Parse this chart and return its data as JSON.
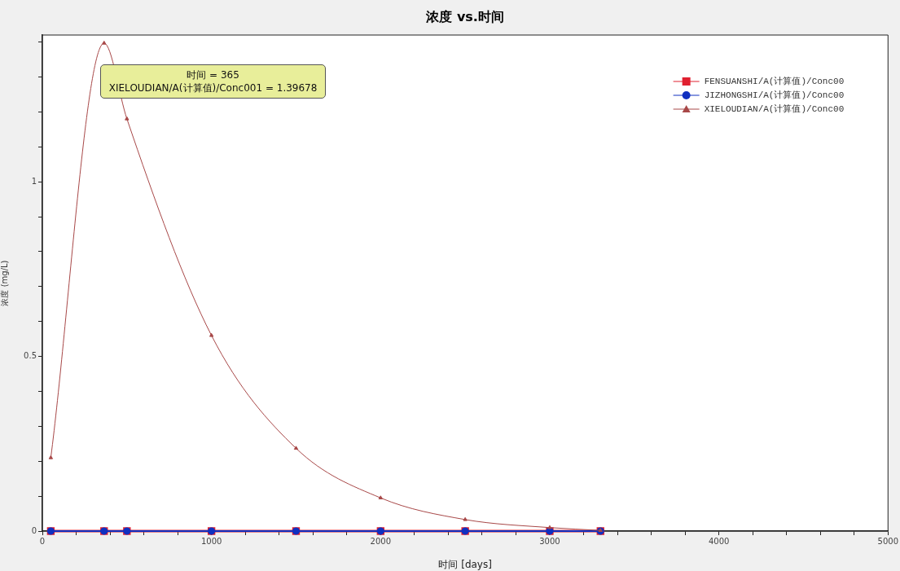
{
  "chart_data": {
    "type": "line",
    "title": "浓度 vs.时间",
    "xlabel": "时间 [days]",
    "ylabel": "浓度 (mg/L)",
    "x": [
      50,
      365,
      500,
      1000,
      1500,
      2000,
      2500,
      3000,
      3300
    ],
    "series": [
      {
        "name": "FENSUANSHI/A(计算值)/Conc00",
        "color": "#e02030",
        "marker": "square",
        "values": [
          0,
          0,
          0,
          0,
          0,
          0,
          0,
          0,
          0
        ]
      },
      {
        "name": "JIZHONGSHI/A(计算值)/Conc00",
        "color": "#1030c0",
        "marker": "circle",
        "values": [
          0,
          0,
          0,
          0,
          0,
          0,
          0,
          0,
          0
        ]
      },
      {
        "name": "XIELOUDIAN/A(计算值)/Conc00",
        "color": "#a84848",
        "marker": "triangle",
        "values": [
          0.21,
          1.39678,
          1.18,
          0.56,
          0.237,
          0.095,
          0.033,
          0.01,
          0.002
        ]
      }
    ],
    "xlim": [
      0,
      5000
    ],
    "xticks": [
      0,
      {
        "value": 200,
        "label": null
      },
      {
        "value": 400,
        "label": null
      },
      {
        "value": 600,
        "label": null
      },
      {
        "value": 800,
        "label": null
      },
      1000,
      {
        "value": 1200,
        "label": null
      },
      {
        "value": 1400,
        "label": null
      },
      {
        "value": 1600,
        "label": null
      },
      {
        "value": 1800,
        "label": null
      },
      2000,
      {
        "value": 2200,
        "label": null
      },
      {
        "value": 2400,
        "label": null
      },
      {
        "value": 2600,
        "label": null
      },
      {
        "value": 2800,
        "label": null
      },
      3000,
      {
        "value": 3200,
        "label": null
      },
      {
        "value": 3400,
        "label": null
      },
      {
        "value": 3600,
        "label": null
      },
      {
        "value": 3800,
        "label": null
      },
      4000,
      {
        "value": 4200,
        "label": null
      },
      {
        "value": 4400,
        "label": null
      },
      {
        "value": 4600,
        "label": null
      },
      {
        "value": 4800,
        "label": null
      },
      5000
    ],
    "ylim": [
      0,
      1.42
    ],
    "yticks": [
      0,
      {
        "value": 0.1,
        "label": null
      },
      {
        "value": 0.2,
        "label": null
      },
      {
        "value": 0.3,
        "label": null
      },
      {
        "value": 0.4,
        "label": null
      },
      0.5,
      {
        "value": 0.6,
        "label": null
      },
      {
        "value": 0.7,
        "label": null
      },
      {
        "value": 0.8,
        "label": null
      },
      {
        "value": 0.9,
        "label": null
      },
      1,
      {
        "value": 1.1,
        "label": null
      },
      {
        "value": 1.2,
        "label": null
      },
      {
        "value": 1.3,
        "label": null
      },
      {
        "value": 1.4,
        "label": null
      }
    ],
    "annotations": [
      {
        "text": "时间 = 365\nXIELOUDIAN/A(计算值)/Conc001 = 1.39678",
        "x": 365,
        "y": 1.39678
      }
    ],
    "grid": false,
    "legend": "top right",
    "line_style": "solid"
  }
}
